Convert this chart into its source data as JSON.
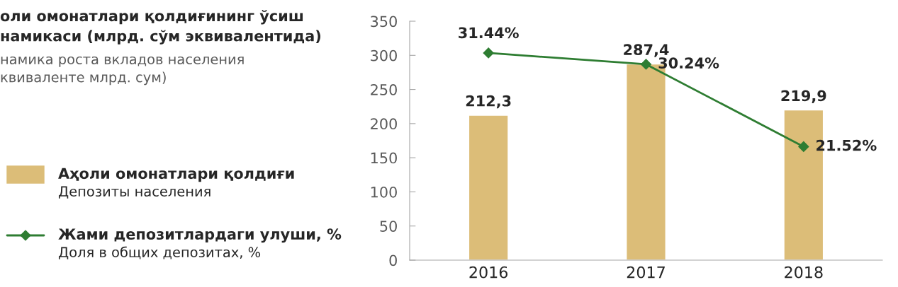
{
  "chart_data": {
    "type": "bar",
    "title": "оли омонатлари қолдиғининг ўсиш\nнамикаси (млрд. сўм эквивалентида)",
    "subtitle": "намика роста вкладов населения\nквиваленте млрд. сум)",
    "categories": [
      "2016",
      "2017",
      "2018"
    ],
    "series": [
      {
        "name": "Аҳоли омонатлари қолдиғи\nДепозиты населения",
        "color": "#dcbd78",
        "values": [
          212.3,
          287.4,
          219.9
        ],
        "value_labels": [
          "212,3",
          "287,4",
          "219,9"
        ]
      },
      {
        "name": "Жами депозитлардаги улуши, %\nДоля в общих депозитах, %",
        "type": "line",
        "axis": "y2",
        "color": "#2e7d32",
        "marker": "diamond",
        "values": [
          31.44,
          30.24,
          21.52
        ],
        "value_labels": [
          "31.44%",
          "30.24%",
          "21.52%"
        ]
      }
    ],
    "ylim": [
      0,
      350
    ],
    "yticks": [
      0,
      50,
      100,
      150,
      200,
      250,
      300,
      350
    ],
    "y2lim": [
      9.5,
      34.8
    ],
    "grid": false,
    "legend": "left"
  }
}
